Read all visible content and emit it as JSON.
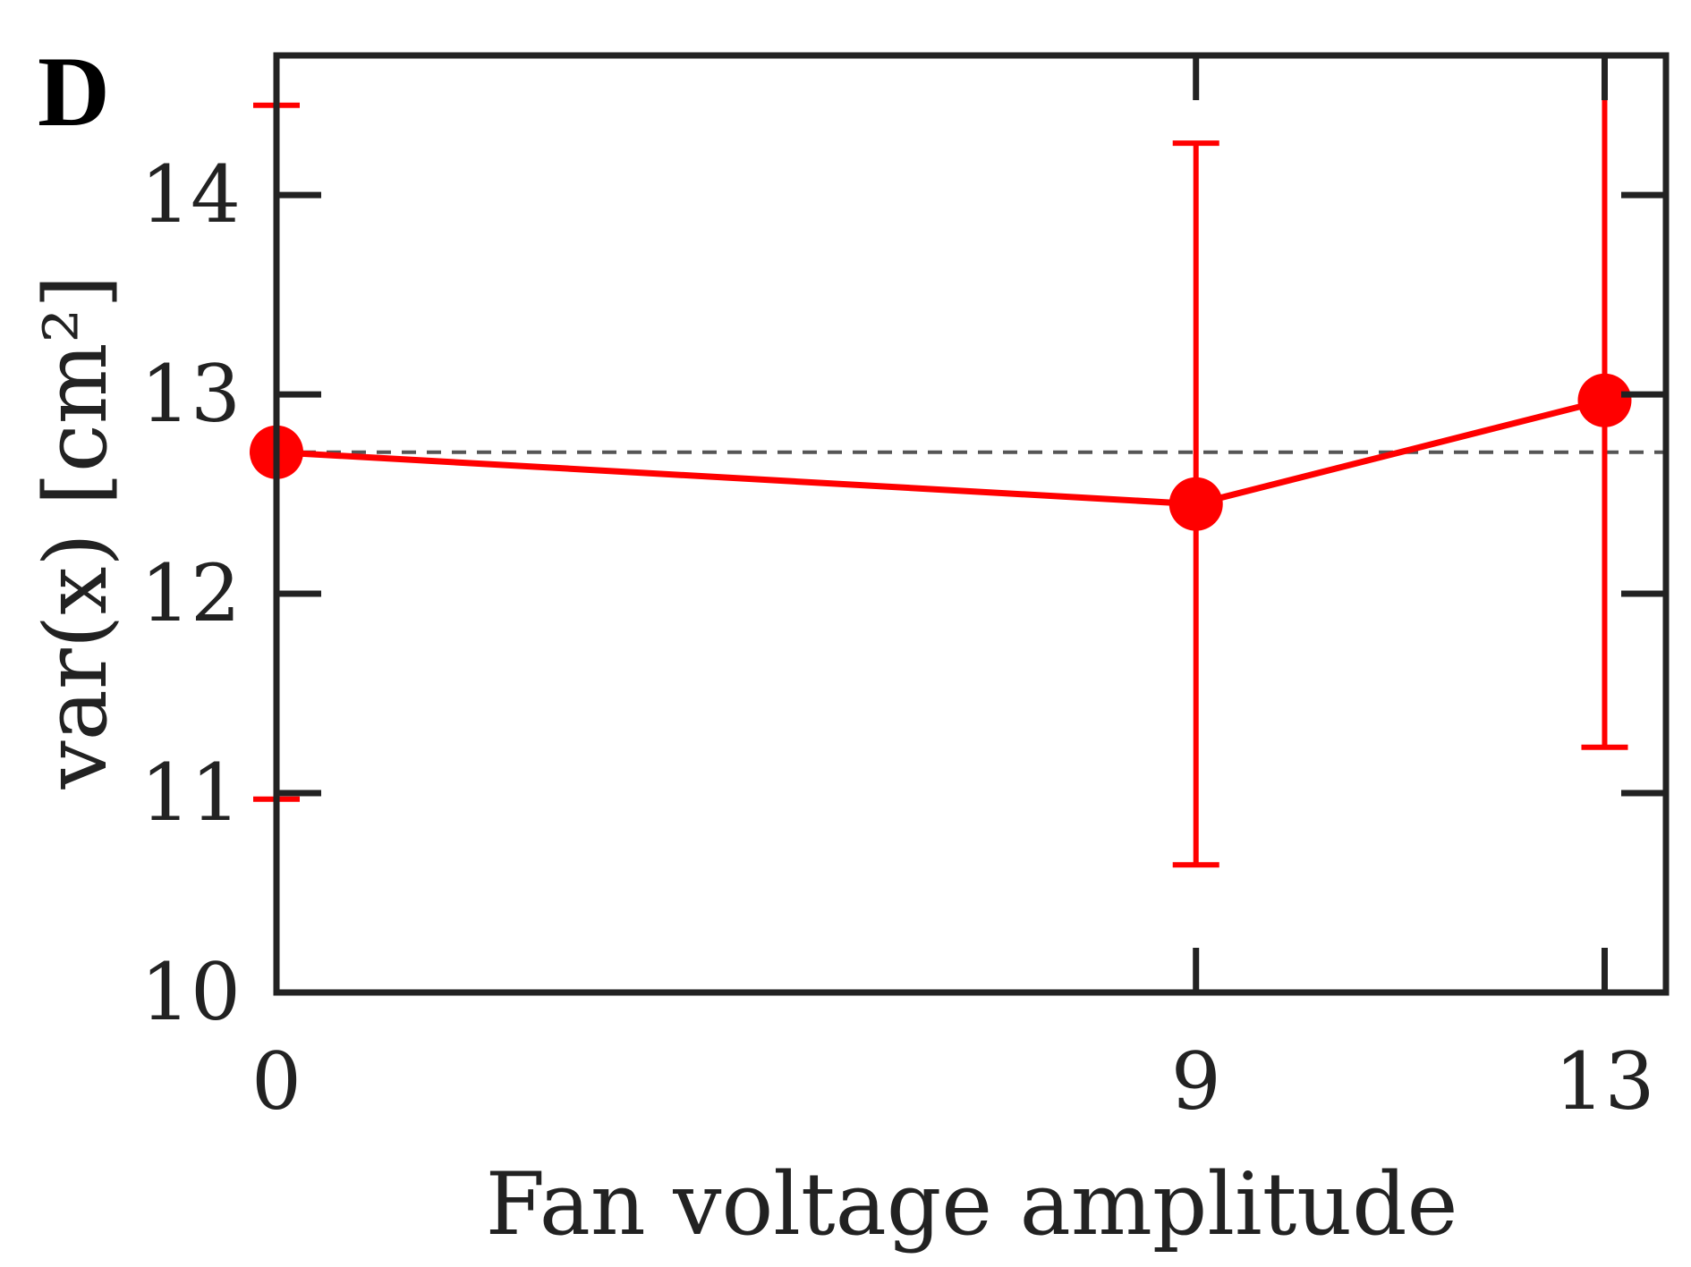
{
  "chart_data": {
    "type": "line",
    "panel_label": "D",
    "title": "",
    "xlabel": "Fan voltage amplitude",
    "ylabel": "var(x) [cm²]",
    "xlim": [
      0,
      13.6
    ],
    "ylim": [
      10,
      14.7
    ],
    "x_ticks": [
      0,
      9,
      13
    ],
    "x_tick_labels": [
      "0",
      "9",
      "13"
    ],
    "y_ticks": [
      10,
      11,
      12,
      13,
      14
    ],
    "y_tick_labels": [
      "10",
      "11",
      "12",
      "13",
      "14"
    ],
    "grid": false,
    "legend": false,
    "reference_line": {
      "y": 12.71,
      "style": "dashed",
      "color": "#555555"
    },
    "series": [
      {
        "color": "#ff0000",
        "x": [
          0,
          9,
          13
        ],
        "y": [
          12.71,
          12.45,
          12.97
        ],
        "err_low": [
          10.97,
          10.64,
          11.23
        ],
        "err_high": [
          14.45,
          14.26,
          14.7
        ]
      }
    ]
  }
}
